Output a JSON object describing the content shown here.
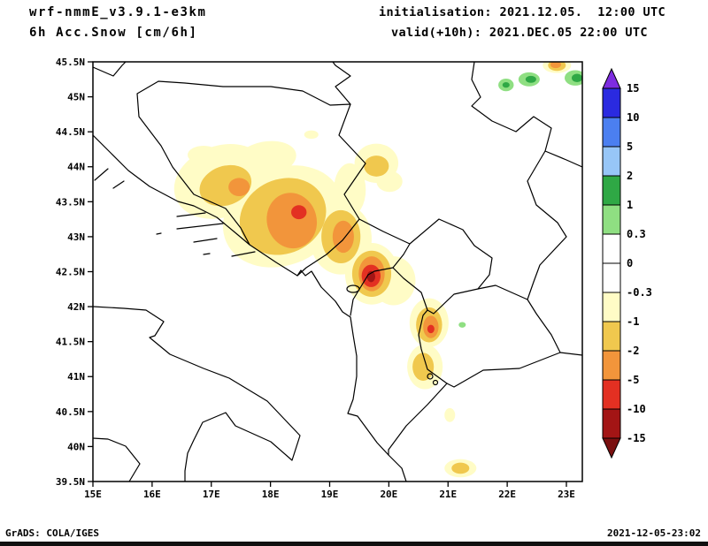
{
  "header": {
    "model": "wrf-nmmE_v3.9.1-e3km",
    "product": "6h Acc.Snow [cm/6h]",
    "init_label": "initialisation: 2021.12.05.  12:00 UTC",
    "valid_label": "valid(+10h): 2021.DEC.05 22:00 UTC"
  },
  "footer": {
    "credit": "GrADS: COLA/IGES",
    "timestamp": "2021-12-05-23:02"
  },
  "chart_data": {
    "type": "heatmap",
    "title": "6h Acc.Snow [cm/6h]",
    "units": "cm/6h",
    "region": "Balkans / Adriatic",
    "grid": false,
    "legend_position": "right",
    "x_axis": {
      "ticks": [
        15,
        16,
        17,
        18,
        19,
        20,
        21,
        22,
        23
      ],
      "tick_labels": [
        "15E",
        "16E",
        "17E",
        "18E",
        "19E",
        "20E",
        "21E",
        "22E",
        "23E"
      ],
      "range": [
        15,
        23.27
      ]
    },
    "y_axis": {
      "ticks": [
        45.5,
        45,
        44.5,
        44,
        43.5,
        43,
        42.5,
        42,
        41.5,
        41,
        40.5,
        40,
        39.5
      ],
      "tick_labels": [
        "45.5N",
        "45N",
        "44.5N",
        "44N",
        "43.5N",
        "43N",
        "42.5N",
        "42N",
        "41.5N",
        "41N",
        "40.5N",
        "40N",
        "39.5N"
      ],
      "range": [
        39.5,
        45.5
      ]
    },
    "colorbar": {
      "labels": [
        "15",
        "10",
        "5",
        "2",
        "1",
        "0.3",
        "0",
        "-0.3",
        "-1",
        "-2",
        "-5",
        "-10",
        "-15"
      ],
      "segment_colors": [
        "#2a2ae0",
        "#4b7ff0",
        "#97c6f7",
        "#2fa845",
        "#8fdf82",
        "#ffffff",
        "#ffffff",
        "#fffcc6",
        "#f0c84e",
        "#f2953b",
        "#e33022",
        "#a31515"
      ],
      "arrow_up_color": "#7d2ce0",
      "arrow_down_color": "#7a1010"
    },
    "level_colors": {
      "1.5": "#2fa845",
      "0.5": "#8fdf82",
      "-0.5": "#fffcc6",
      "-1.5": "#f0c84e",
      "-3": "#f2953b",
      "-7": "#e33022",
      "-12": "#a31515"
    },
    "snow_regions": [
      {
        "lon": 17.17,
        "lat": 43.79,
        "rx": 0.82,
        "ry": 0.51,
        "rot": -20,
        "level": -0.5
      },
      {
        "lon": 18.21,
        "lat": 43.29,
        "rx": 1.05,
        "ry": 0.69,
        "rot": -25,
        "level": -0.5
      },
      {
        "lon": 19.19,
        "lat": 42.97,
        "rx": 0.52,
        "ry": 0.51,
        "rot": 0,
        "level": -0.5
      },
      {
        "lon": 17.92,
        "lat": 44.11,
        "rx": 0.52,
        "ry": 0.25,
        "rot": -10,
        "level": -0.5
      },
      {
        "lon": 19.79,
        "lat": 44.05,
        "rx": 0.37,
        "ry": 0.28,
        "rot": 0,
        "level": -0.5
      },
      {
        "lon": 20.01,
        "lat": 43.79,
        "rx": 0.22,
        "ry": 0.15,
        "rot": 0,
        "level": -0.5
      },
      {
        "lon": 19.71,
        "lat": 42.47,
        "rx": 0.45,
        "ry": 0.44,
        "rot": 0,
        "level": -0.5
      },
      {
        "lon": 20.08,
        "lat": 42.37,
        "rx": 0.37,
        "ry": 0.35,
        "rot": 0,
        "level": -0.5
      },
      {
        "lon": 20.68,
        "lat": 41.77,
        "rx": 0.33,
        "ry": 0.35,
        "rot": 0,
        "level": -0.5
      },
      {
        "lon": 20.61,
        "lat": 41.14,
        "rx": 0.3,
        "ry": 0.32,
        "rot": 0,
        "level": -0.5
      },
      {
        "lon": 21.21,
        "lat": 39.69,
        "rx": 0.27,
        "ry": 0.13,
        "rot": 0,
        "level": -0.5
      },
      {
        "lon": 18.69,
        "lat": 44.46,
        "rx": 0.12,
        "ry": 0.06,
        "rot": 0,
        "level": -0.5
      },
      {
        "lon": 16.87,
        "lat": 44.17,
        "rx": 0.27,
        "ry": 0.13,
        "rot": 0,
        "level": -0.5
      },
      {
        "lon": 19.34,
        "lat": 43.67,
        "rx": 0.27,
        "ry": 0.38,
        "rot": 0,
        "level": -0.5
      },
      {
        "lon": 21.03,
        "lat": 40.45,
        "rx": 0.09,
        "ry": 0.1,
        "rot": 0,
        "level": -0.5
      },
      {
        "lon": 22.84,
        "lat": 45.45,
        "rx": 0.24,
        "ry": 0.11,
        "rot": 0,
        "level": -0.5
      },
      {
        "lon": 17.24,
        "lat": 43.73,
        "rx": 0.45,
        "ry": 0.28,
        "rot": -20,
        "level": -1.5
      },
      {
        "lon": 18.21,
        "lat": 43.29,
        "rx": 0.75,
        "ry": 0.53,
        "rot": -25,
        "level": -1.5
      },
      {
        "lon": 19.19,
        "lat": 43.0,
        "rx": 0.33,
        "ry": 0.38,
        "rot": 0,
        "level": -1.5
      },
      {
        "lon": 19.79,
        "lat": 44.01,
        "rx": 0.21,
        "ry": 0.15,
        "rot": 0,
        "level": -1.5
      },
      {
        "lon": 19.71,
        "lat": 42.47,
        "rx": 0.33,
        "ry": 0.33,
        "rot": 0,
        "level": -1.5
      },
      {
        "lon": 20.68,
        "lat": 41.74,
        "rx": 0.22,
        "ry": 0.25,
        "rot": 0,
        "level": -1.5
      },
      {
        "lon": 20.58,
        "lat": 41.14,
        "rx": 0.18,
        "ry": 0.2,
        "rot": 0,
        "level": -1.5
      },
      {
        "lon": 21.21,
        "lat": 39.69,
        "rx": 0.15,
        "ry": 0.08,
        "rot": 0,
        "level": -1.5
      },
      {
        "lon": 22.84,
        "lat": 45.45,
        "rx": 0.15,
        "ry": 0.08,
        "rot": 0,
        "level": -1.5
      },
      {
        "lon": 17.47,
        "lat": 43.71,
        "rx": 0.18,
        "ry": 0.13,
        "rot": 0,
        "level": -3
      },
      {
        "lon": 18.36,
        "lat": 43.23,
        "rx": 0.42,
        "ry": 0.4,
        "rot": -15,
        "level": -3
      },
      {
        "lon": 19.23,
        "lat": 43.0,
        "rx": 0.18,
        "ry": 0.23,
        "rot": 0,
        "level": -3
      },
      {
        "lon": 19.71,
        "lat": 42.47,
        "rx": 0.22,
        "ry": 0.25,
        "rot": 0,
        "level": -3
      },
      {
        "lon": 20.71,
        "lat": 41.71,
        "rx": 0.13,
        "ry": 0.16,
        "rot": 0,
        "level": -3
      },
      {
        "lon": 22.82,
        "lat": 45.46,
        "rx": 0.09,
        "ry": 0.05,
        "rot": 0,
        "level": -3
      },
      {
        "lon": 18.48,
        "lat": 43.35,
        "rx": 0.13,
        "ry": 0.1,
        "rot": 0,
        "level": -7
      },
      {
        "lon": 19.7,
        "lat": 42.44,
        "rx": 0.16,
        "ry": 0.16,
        "rot": 0,
        "level": -7
      },
      {
        "lon": 20.71,
        "lat": 41.68,
        "rx": 0.06,
        "ry": 0.06,
        "rot": 0,
        "level": -7
      },
      {
        "lon": 19.7,
        "lat": 42.43,
        "rx": 0.07,
        "ry": 0.08,
        "rot": 0,
        "level": -12
      },
      {
        "lon": 21.98,
        "lat": 45.17,
        "rx": 0.13,
        "ry": 0.09,
        "rot": 0,
        "level": 0.5
      },
      {
        "lon": 22.37,
        "lat": 45.25,
        "rx": 0.18,
        "ry": 0.1,
        "rot": 0,
        "level": 0.5
      },
      {
        "lon": 23.15,
        "lat": 45.27,
        "rx": 0.18,
        "ry": 0.11,
        "rot": 0,
        "level": 0.5
      },
      {
        "lon": 21.24,
        "lat": 41.74,
        "rx": 0.06,
        "ry": 0.04,
        "rot": 0,
        "level": 0.5
      },
      {
        "lon": 21.98,
        "lat": 45.17,
        "rx": 0.06,
        "ry": 0.04,
        "rot": 0,
        "level": 1.5
      },
      {
        "lon": 22.4,
        "lat": 45.25,
        "rx": 0.09,
        "ry": 0.05,
        "rot": 0,
        "level": 1.5
      },
      {
        "lon": 23.18,
        "lat": 45.27,
        "rx": 0.09,
        "ry": 0.06,
        "rot": 0,
        "level": 1.5
      }
    ]
  }
}
